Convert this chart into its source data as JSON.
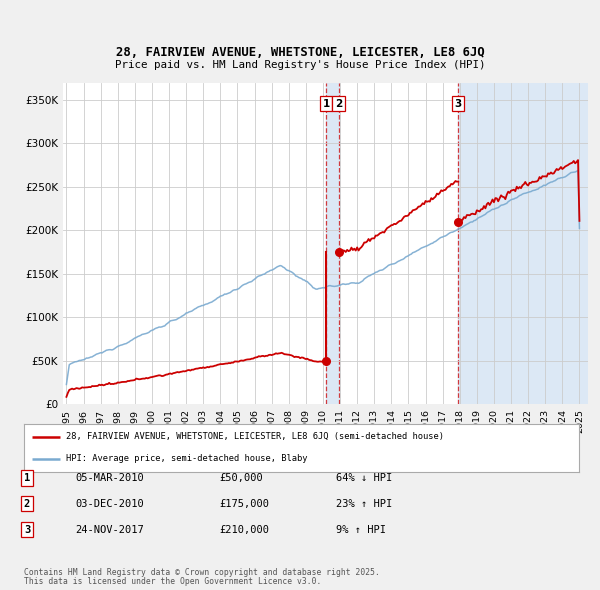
{
  "title": "28, FAIRVIEW AVENUE, WHETSTONE, LEICESTER, LE8 6JQ",
  "subtitle": "Price paid vs. HM Land Registry's House Price Index (HPI)",
  "ylim": [
    0,
    370000
  ],
  "yticks": [
    0,
    50000,
    100000,
    150000,
    200000,
    250000,
    300000,
    350000
  ],
  "ytick_labels": [
    "£0",
    "£50K",
    "£100K",
    "£150K",
    "£200K",
    "£250K",
    "£300K",
    "£350K"
  ],
  "xlim_start": 1994.8,
  "xlim_end": 2025.5,
  "transactions": [
    {
      "date": "05-MAR-2010",
      "price": 50000,
      "pct": "64%",
      "dir": "↓",
      "label": "1",
      "year": 2010.18
    },
    {
      "date": "03-DEC-2010",
      "price": 175000,
      "pct": "23%",
      "dir": "↑",
      "label": "2",
      "year": 2010.92
    },
    {
      "date": "24-NOV-2017",
      "price": 210000,
      "pct": "9%",
      "dir": "↑",
      "label": "3",
      "year": 2017.9
    }
  ],
  "legend_line1": "28, FAIRVIEW AVENUE, WHETSTONE, LEICESTER, LE8 6JQ (semi-detached house)",
  "legend_line2": "HPI: Average price, semi-detached house, Blaby",
  "footer1": "Contains HM Land Registry data © Crown copyright and database right 2025.",
  "footer2": "This data is licensed under the Open Government Licence v3.0.",
  "red_color": "#cc0000",
  "blue_color": "#7aaad0",
  "shade_color": "#dce8f5",
  "background_color": "#f0f0f0",
  "plot_bg": "#ffffff",
  "grid_color": "#cccccc"
}
